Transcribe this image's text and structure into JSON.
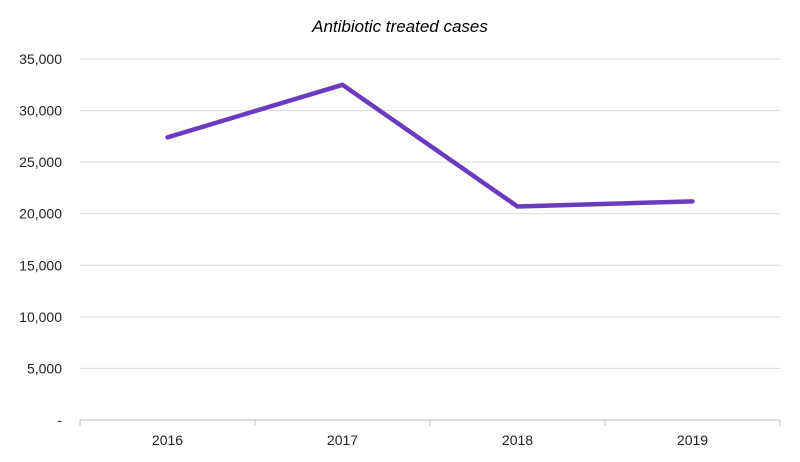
{
  "chart_data": {
    "type": "line",
    "title": "Antibiotic treated cases",
    "xlabel": "",
    "ylabel": "",
    "categories": [
      "2016",
      "2017",
      "2018",
      "2019"
    ],
    "series": [
      {
        "values": [
          27400,
          32500,
          20700,
          21200
        ],
        "color": "#6a3bbf"
      }
    ],
    "ylim": [
      0,
      35000
    ],
    "yticks": [
      0,
      5000,
      10000,
      15000,
      20000,
      25000,
      30000,
      35000
    ],
    "ytick_labels": [
      "-",
      "5,000",
      "10,000",
      "15,000",
      "20,000",
      "25,000",
      "30,000",
      "35,000"
    ],
    "grid": true,
    "legend": "none"
  }
}
